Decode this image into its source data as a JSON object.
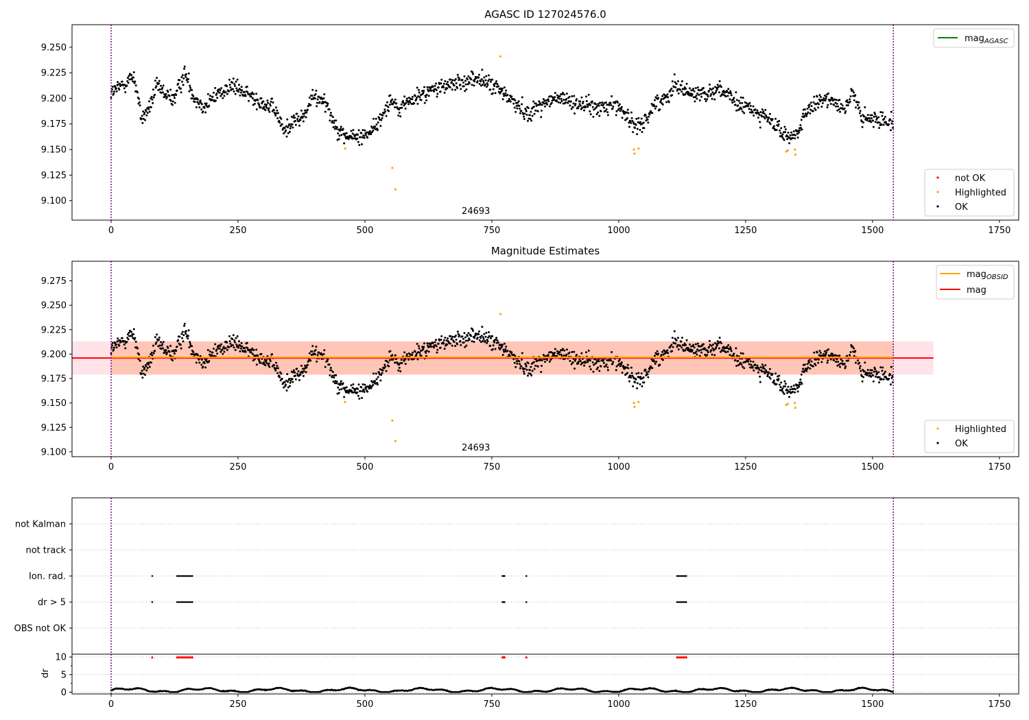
{
  "figure": {
    "title": "AGASC ID 127024576.0"
  },
  "colors": {
    "ok": "#000000",
    "highlighted": "#ffa500",
    "not_ok": "#ff0000",
    "agasc_line": "#008000",
    "mag_obsid_line": "#ffa500",
    "mag_line": "#ff0000",
    "band_outer": "#ffc0cb",
    "band_inner": "#ffa07a",
    "boundary": "#800080"
  },
  "chart_data": [
    {
      "type": "scatter",
      "title": "",
      "xlim": [
        -77,
        1788
      ],
      "ylim": [
        9.081,
        9.272
      ],
      "x_ticks": [
        0,
        250,
        500,
        750,
        1000,
        1250,
        1500,
        1750
      ],
      "y_ticks": [
        9.1,
        9.125,
        9.15,
        9.175,
        9.2,
        9.225,
        9.25
      ],
      "y_tick_labels": [
        "9.100",
        "9.125",
        "9.150",
        "9.175",
        "9.200",
        "9.225",
        "9.250"
      ],
      "vlines": [
        0,
        1541
      ],
      "annotation": {
        "text": "24693",
        "x": 770
      },
      "legend_upper": [
        {
          "label": "mag",
          "sub": "AGASC",
          "color": "#008000"
        }
      ],
      "legend_lower": [
        {
          "label": "not OK",
          "color": "#ff0000"
        },
        {
          "label": "Highlighted",
          "color": "#ffa500"
        },
        {
          "label": "OK",
          "color": "#000000"
        }
      ],
      "series": [
        {
          "name": "OK",
          "profile": "samples",
          "n": 1541
        },
        {
          "name": "Highlighted",
          "points": [
            [
              461,
              9.151
            ],
            [
              554,
              9.132
            ],
            [
              560,
              9.111
            ],
            [
              767,
              9.241
            ],
            [
              1030,
              9.15
            ],
            [
              1031,
              9.146
            ],
            [
              1039,
              9.151
            ],
            [
              1330,
              9.148
            ],
            [
              1333,
              9.149
            ],
            [
              1347,
              9.15
            ],
            [
              1348,
              9.145
            ]
          ]
        }
      ]
    },
    {
      "type": "scatter",
      "title": "Magnitude Estimates",
      "xlim": [
        -77,
        1788
      ],
      "ylim": [
        9.095,
        9.295
      ],
      "x_ticks": [
        0,
        250,
        500,
        750,
        1000,
        1250,
        1500,
        1750
      ],
      "y_ticks": [
        9.1,
        9.125,
        9.15,
        9.175,
        9.2,
        9.225,
        9.25,
        9.275
      ],
      "y_tick_labels": [
        "9.100",
        "9.125",
        "9.150",
        "9.175",
        "9.200",
        "9.225",
        "9.250",
        "9.275"
      ],
      "vlines": [
        0,
        1541
      ],
      "annotation": {
        "text": "24693",
        "x": 770
      },
      "mag": 9.196,
      "mag_band": [
        9.179,
        9.213
      ],
      "mag_range_x": [
        -77,
        1620
      ],
      "mag_obsid": 9.196,
      "mag_obsid_band": [
        9.179,
        9.213
      ],
      "mag_obsid_range_x": [
        0,
        1541
      ],
      "legend_upper": [
        {
          "label": "mag",
          "sub": "OBSID",
          "color": "#ffa500"
        },
        {
          "label": "mag",
          "sub": "",
          "color": "#ff0000"
        }
      ],
      "legend_lower": [
        {
          "label": "Highlighted",
          "color": "#ffa500"
        },
        {
          "label": "OK",
          "color": "#000000"
        }
      ]
    },
    {
      "type": "scatter",
      "title": "",
      "xlim": [
        -77,
        1788
      ],
      "categories": [
        "not Kalman",
        "not track",
        "Ion. rad.",
        "dr > 5",
        "OBS not OK"
      ],
      "flag_events": {
        "Ion. rad.": [
          81,
          130,
          133,
          136,
          139,
          142,
          145,
          148,
          151,
          154,
          157,
          160,
          771,
          773,
          775,
          818,
          1115,
          1118,
          1121,
          1124,
          1127,
          1130,
          1133
        ],
        "dr > 5": [
          81,
          130,
          133,
          136,
          139,
          142,
          145,
          148,
          151,
          154,
          157,
          160,
          771,
          773,
          775,
          818,
          1115,
          1118,
          1121,
          1124,
          1127,
          1130,
          1133
        ]
      }
    },
    {
      "type": "scatter",
      "title": "",
      "ylabel": "dr",
      "xlim": [
        -77,
        1788
      ],
      "ylim": [
        -0.5,
        10.8
      ],
      "x_ticks": [
        0,
        250,
        500,
        750,
        1000,
        1250,
        1500,
        1750
      ],
      "y_ticks": [
        0,
        5,
        10
      ],
      "y_tick_labels": [
        "0",
        "5",
        "10"
      ],
      "dr_above_threshold_x": [
        81,
        130,
        133,
        136,
        139,
        142,
        145,
        148,
        151,
        154,
        157,
        160,
        771,
        773,
        775,
        818,
        1115,
        1118,
        1121,
        1124,
        1127,
        1130,
        1133
      ],
      "dr_capped_value": 10,
      "dr_profile": "samples"
    }
  ]
}
